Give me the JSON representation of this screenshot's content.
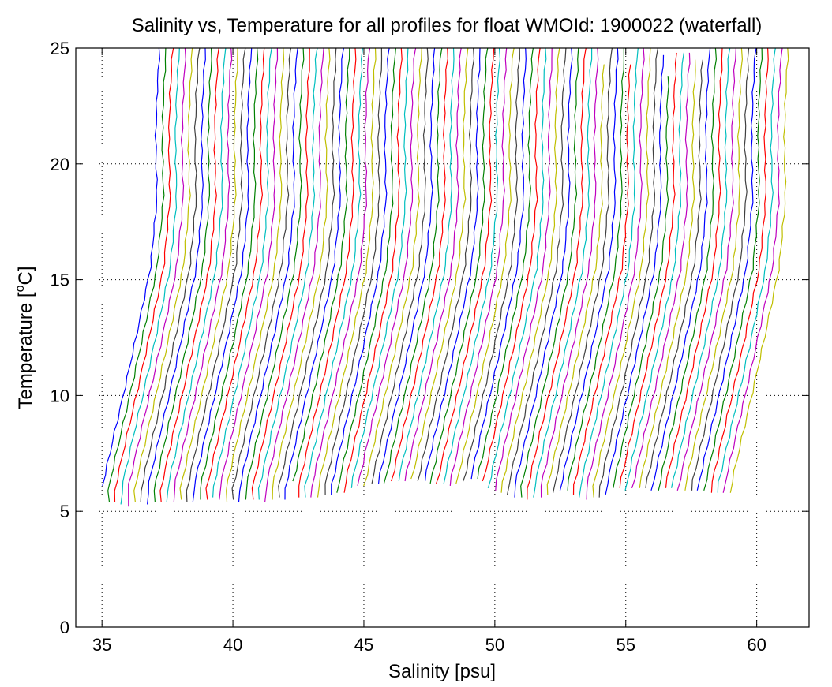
{
  "chart_data": {
    "type": "line",
    "title": "Salinity vs, Temperature for all profiles for float WMOId: 1900022 (waterfall)",
    "xlabel": "Salinity [psu]",
    "ylabel_main": "Temperature [",
    "ylabel_sup": "o",
    "ylabel_end": "C]",
    "xlim": [
      34.0,
      62.0
    ],
    "ylim": [
      0,
      25
    ],
    "x_ticks": [
      35,
      40,
      45,
      50,
      55,
      60
    ],
    "y_ticks": [
      0,
      5,
      10,
      15,
      20,
      25
    ],
    "grid": true,
    "grid_style": "dotted",
    "color_cycle": [
      "#0000ff",
      "#008000",
      "#ff0000",
      "#00bfbf",
      "#bf00bf",
      "#bfbf00",
      "#404040"
    ],
    "waterfall_offset_psu": 0.25,
    "profile_count": 97,
    "first_profile": {
      "salinity": [
        35.0,
        35.2,
        35.5,
        35.85,
        36.3,
        36.85,
        37.1,
        37.05,
        37.1,
        37.2
      ],
      "temperature": [
        6.0,
        7.0,
        8.5,
        10.2,
        12.5,
        15.5,
        18.5,
        21.0,
        23.0,
        25.0
      ]
    },
    "bottom_temperatures": [
      6.1,
      5.4,
      5.4,
      5.3,
      5.2,
      5.4,
      5.4,
      5.3,
      5.4,
      5.4,
      5.4,
      5.4,
      5.5,
      5.4,
      5.4,
      5.5,
      5.5,
      5.6,
      5.5,
      5.4,
      5.5,
      5.4,
      5.5,
      5.5,
      5.5,
      5.4,
      5.5,
      5.6,
      5.5,
      6.3,
      5.6,
      5.6,
      5.6,
      5.6,
      5.7,
      5.7,
      5.8,
      5.8,
      6.0,
      6.1,
      6.1,
      6.2,
      6.2,
      6.2,
      6.3,
      6.3,
      6.3,
      6.4,
      6.3,
      6.3,
      6.2,
      6.2,
      6.2,
      6.1,
      6.2,
      6.3,
      6.4,
      6.4,
      6.3,
      6.0,
      5.9,
      5.8,
      5.7,
      5.6,
      5.6,
      5.5,
      5.6,
      5.6,
      5.7,
      5.8,
      5.9,
      5.9,
      5.7,
      5.6,
      5.5,
      5.6,
      5.6,
      5.7,
      6.0,
      6.0,
      5.9,
      6.0,
      6.0,
      6.0,
      5.9,
      5.9,
      6.0,
      6.0,
      5.9,
      5.9,
      5.9,
      5.9,
      5.9,
      5.8,
      5.8,
      5.8,
      5.8
    ],
    "top_temperatures": [
      25,
      25,
      25,
      25,
      25,
      25,
      25,
      25,
      25,
      25,
      25,
      25,
      25,
      25,
      25,
      25,
      25,
      25,
      25,
      25,
      25,
      25,
      25,
      25,
      25,
      25,
      25,
      25,
      25,
      25,
      25,
      25,
      25,
      25,
      25,
      25,
      25,
      25,
      25,
      25,
      25,
      25,
      25,
      25,
      25,
      25,
      25,
      25,
      25,
      25,
      25,
      25,
      25,
      25,
      25,
      25,
      25,
      25,
      25,
      25,
      25,
      25,
      25,
      25,
      25,
      25,
      25,
      25,
      24.3,
      25,
      25,
      25,
      24.3,
      25,
      25,
      25,
      25,
      24.7,
      23.8,
      24.8,
      24.8,
      24.8,
      24.5,
      24.5,
      25,
      25,
      25,
      25,
      25,
      25,
      25,
      25,
      25,
      25,
      25,
      25,
      25
    ]
  }
}
